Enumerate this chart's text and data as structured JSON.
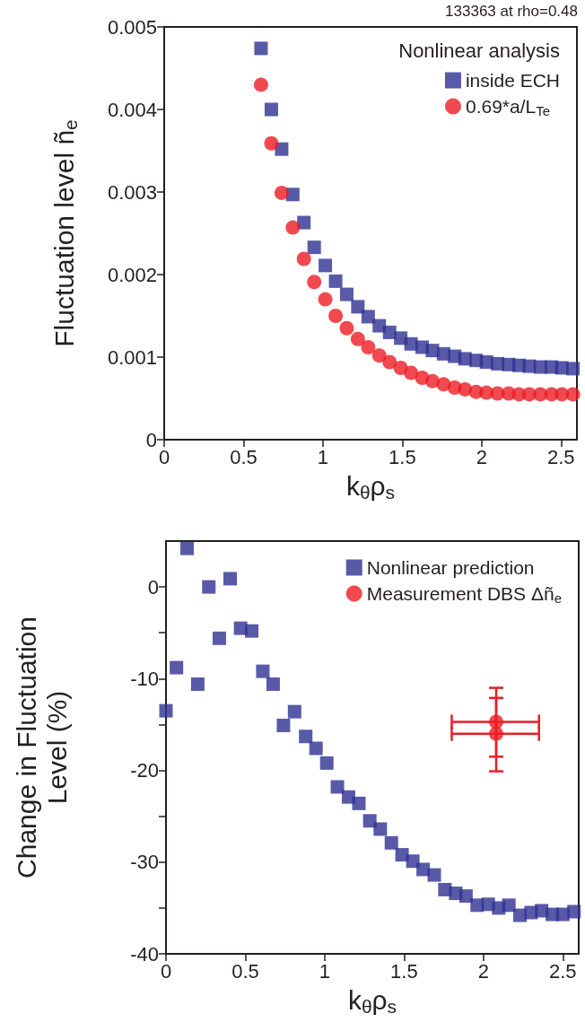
{
  "chart_data": [
    {
      "type": "scatter",
      "xlabel": "k$_{θ}$ρ$_{s}$",
      "ylabel": "Fluctuation level ñ$_{e}$",
      "legend_title": "Nonlinear analysis",
      "annotations": [
        "133363 at rho=0.48"
      ],
      "xlim": [
        0,
        2.6
      ],
      "xticks": [
        0,
        0.5,
        1,
        1.5,
        2,
        2.5
      ],
      "ylim": [
        0,
        0.005
      ],
      "yticks": [
        0,
        0.001,
        0.002,
        0.003,
        0.004,
        0.005
      ],
      "grid": false,
      "legend": "top right",
      "series": [
        {
          "name": "inside ECH",
          "color": "#2e3192",
          "marker": "square",
          "x": [
            0.61,
            0.675,
            0.74,
            0.81,
            0.88,
            0.945,
            1.015,
            1.08,
            1.15,
            1.22,
            1.285,
            1.355,
            1.42,
            1.49,
            1.555,
            1.625,
            1.69,
            1.76,
            1.83,
            1.895,
            1.965,
            2.03,
            2.1,
            2.17,
            2.235,
            2.3,
            2.37,
            2.44,
            2.505,
            2.575
          ],
          "values": [
            0.00474,
            0.004,
            0.00352,
            0.00297,
            0.00263,
            0.00233,
            0.00211,
            0.00192,
            0.00176,
            0.00161,
            0.00149,
            0.00138,
            0.0013,
            0.00123,
            0.00116,
            0.00112,
            0.00108,
            0.00104,
            0.00101,
            0.00098,
            0.00096,
            0.00094,
            0.00092,
            0.00091,
            0.0009,
            0.00089,
            0.00088,
            0.00088,
            0.00087,
            0.00086
          ]
        },
        {
          "name": "0.69*a/L$_{Te}$",
          "color": "#ed1c24",
          "marker": "circle",
          "x": [
            0.61,
            0.675,
            0.74,
            0.81,
            0.88,
            0.945,
            1.015,
            1.08,
            1.15,
            1.22,
            1.285,
            1.355,
            1.42,
            1.49,
            1.555,
            1.625,
            1.69,
            1.76,
            1.83,
            1.895,
            1.965,
            2.03,
            2.1,
            2.17,
            2.235,
            2.3,
            2.37,
            2.44,
            2.505,
            2.575
          ],
          "values": [
            0.0043,
            0.00359,
            0.00299,
            0.00257,
            0.00219,
            0.00191,
            0.0017,
            0.0015,
            0.00135,
            0.00122,
            0.00112,
            0.00102,
            0.00094,
            0.00087,
            0.00081,
            0.00075,
            0.00071,
            0.00067,
            0.00063,
            0.00061,
            0.00058,
            0.00057,
            0.00056,
            0.00056,
            0.00055,
            0.00055,
            0.00055,
            0.00055,
            0.00055,
            0.00055
          ]
        }
      ]
    },
    {
      "type": "scatter",
      "xlabel": "k$_{θ}$ρ$_{s}$",
      "ylabel": "Change in Fluctuation Level (%)",
      "xlim": [
        0,
        2.6
      ],
      "xticks": [
        0,
        0.5,
        1,
        1.5,
        2,
        2.5
      ],
      "ylim": [
        -40,
        5
      ],
      "yticks": [
        -40,
        {
          "value": -35,
          "label": null
        },
        -30,
        {
          "value": -25,
          "label": null
        },
        -20,
        {
          "value": -15,
          "label": null
        },
        -10,
        {
          "value": -5,
          "label": null
        },
        0
      ],
      "grid": false,
      "legend": "top right",
      "series": [
        {
          "name": "Nonlinear prediction",
          "color": "#2e3192",
          "marker": "square",
          "x": [
            0,
            0.066,
            0.133,
            0.2,
            0.27,
            0.336,
            0.404,
            0.47,
            0.54,
            0.61,
            0.675,
            0.74,
            0.81,
            0.88,
            0.945,
            1.013,
            1.08,
            1.15,
            1.215,
            1.284,
            1.35,
            1.42,
            1.487,
            1.555,
            1.62,
            1.69,
            1.757,
            1.825,
            1.89,
            1.96,
            2.03,
            2.096,
            2.16,
            2.23,
            2.3,
            2.366,
            2.434,
            2.5,
            2.57
          ],
          "values": [
            -13.5,
            -8.8,
            4.2,
            -10.6,
            0,
            -5.6,
            0.9,
            -4.5,
            -4.8,
            -9.2,
            -10.6,
            -15.1,
            -13.6,
            -16.3,
            -17.6,
            -19.2,
            -21.8,
            -22.9,
            -23.6,
            -25.5,
            -26.4,
            -27.9,
            -29.2,
            -29.9,
            -30.8,
            -31.4,
            -33,
            -33.4,
            -33.7,
            -34.7,
            -34.6,
            -35,
            -34.7,
            -35.8,
            -35.5,
            -35.3,
            -35.7,
            -35.7,
            -35.4
          ]
        },
        {
          "name": "Measurement DBS Δñ$_{e}$",
          "color": "#ed1c24",
          "marker": "circle",
          "x": [
            2.08,
            2.08
          ],
          "values": [
            -14.7,
            -16
          ],
          "errors": [
            [
              -18.5,
              -11
            ],
            [
              -20.1,
              -12.1
            ]
          ],
          "xerrors": [
            [
              1.8,
              2.35
            ],
            [
              1.8,
              2.35
            ]
          ]
        }
      ]
    }
  ]
}
